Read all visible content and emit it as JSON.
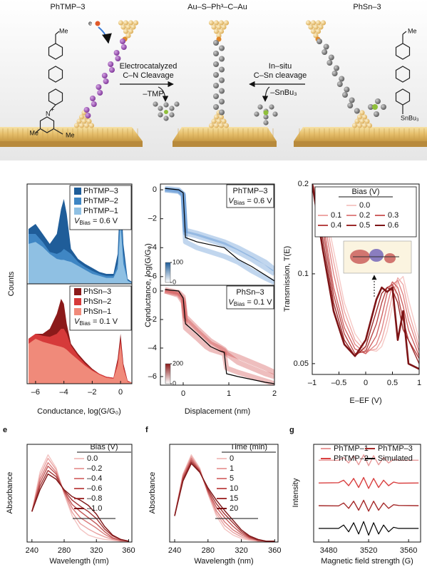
{
  "schematic": {
    "left_title": "PhTMP–3",
    "center_title": "Au–S–Ph³–C–Au",
    "right_title": "PhSn–3",
    "left_arrow": [
      "Electrocatalyzed",
      "C–N Cleavage",
      "–TMP"
    ],
    "right_arrow": [
      "In–situ",
      "C–Sn cleavage",
      "–SnBu₃"
    ],
    "left_molecule": [
      "Me",
      "N",
      "+",
      "Me",
      "Me"
    ],
    "right_molecule": [
      "Me",
      "SnBu₃"
    ],
    "electron": "e"
  },
  "chart_data": [
    {
      "type": "area",
      "ylabel": "Counts",
      "x": [
        -6.5,
        -6,
        -5.5,
        -5,
        -4.5,
        -4.2,
        -4,
        -3.8,
        -3.5,
        -3,
        -2.5,
        -2,
        -1.5,
        -1,
        -0.5,
        -0.2,
        0,
        0.2,
        0.5,
        0.8
      ],
      "xlim": [
        -6.6,
        0.8
      ],
      "ylim": [
        0,
        1
      ],
      "legend": "upper right",
      "annotation": {
        "symbol": "V",
        "subscript": "Bias",
        "text": " = 0.6 V"
      },
      "series": [
        {
          "name": "PhTMP–3",
          "color": "#1f5d99",
          "values": [
            0.55,
            0.6,
            0.5,
            0.4,
            0.5,
            0.75,
            0.85,
            0.7,
            0.35,
            0.25,
            0.2,
            0.16,
            0.12,
            0.1,
            0.1,
            0.3,
            0.97,
            0.4,
            0.05,
            0.02
          ]
        },
        {
          "name": "PhTMP–2",
          "color": "#3f86c4",
          "values": [
            0.5,
            0.5,
            0.42,
            0.32,
            0.3,
            0.32,
            0.35,
            0.33,
            0.3,
            0.22,
            0.17,
            0.13,
            0.1,
            0.08,
            0.08,
            0.2,
            0.8,
            0.3,
            0.04,
            0.01
          ]
        },
        {
          "name": "PhTMP–1",
          "color": "#8fc0e3",
          "values": [
            0.4,
            0.42,
            0.37,
            0.3,
            0.25,
            0.24,
            0.24,
            0.23,
            0.22,
            0.18,
            0.14,
            0.1,
            0.08,
            0.06,
            0.06,
            0.15,
            0.6,
            0.2,
            0.03,
            0.01
          ]
        }
      ]
    },
    {
      "type": "area",
      "xlabel": "Conductance, log(G/G₀)",
      "x": [
        -6.5,
        -6,
        -5.5,
        -5,
        -4.5,
        -4.2,
        -4,
        -3.8,
        -3.5,
        -3,
        -2.5,
        -2,
        -1.5,
        -1,
        -0.5,
        -0.2,
        0,
        0.2,
        0.5,
        0.8
      ],
      "xlim": [
        -6.6,
        0.8
      ],
      "ylim": [
        0,
        1
      ],
      "legend": "upper right",
      "xticks": [
        {
          "value": -6,
          "label": "–6"
        },
        {
          "value": -4,
          "label": "–4"
        },
        {
          "value": -2,
          "label": "–2"
        },
        0
      ],
      "annotation": {
        "symbol": "V",
        "subscript": "Bias",
        "text": " = 0.1 V"
      },
      "series": [
        {
          "name": "PhSn–3",
          "color": "#8b1a1a",
          "values": [
            0.45,
            0.5,
            0.5,
            0.55,
            0.7,
            0.85,
            0.8,
            0.6,
            0.4,
            0.3,
            0.22,
            0.15,
            0.1,
            0.07,
            0.06,
            0.25,
            0.5,
            0.2,
            0.03,
            0.01
          ]
        },
        {
          "name": "PhSn–2",
          "color": "#d63a3a",
          "values": [
            0.45,
            0.5,
            0.48,
            0.47,
            0.5,
            0.55,
            0.55,
            0.5,
            0.38,
            0.28,
            0.2,
            0.14,
            0.1,
            0.07,
            0.06,
            0.22,
            0.45,
            0.18,
            0.03,
            0.01
          ]
        },
        {
          "name": "PhSn–1",
          "color": "#f08a7a",
          "values": [
            0.4,
            0.45,
            0.42,
            0.4,
            0.38,
            0.37,
            0.36,
            0.34,
            0.3,
            0.24,
            0.18,
            0.13,
            0.09,
            0.06,
            0.05,
            0.18,
            0.4,
            0.15,
            0.02,
            0.01
          ]
        }
      ]
    },
    {
      "type": "line",
      "title": "PhTMP–3",
      "annotation": {
        "symbol": "V",
        "subscript": "Bias",
        "text": " = 0.6 V"
      },
      "ylabel": "Conductance, log(G/G₀)",
      "x": [
        -0.4,
        -0.1,
        0,
        0.05,
        0.3,
        0.6,
        0.9,
        1.2,
        1.5,
        1.8,
        2.0
      ],
      "xlim": [
        -0.5,
        2
      ],
      "ylim": [
        -6.6,
        0.4
      ],
      "yticks": [
        0,
        {
          "value": -2,
          "label": "–2"
        },
        {
          "value": -4,
          "label": "–4"
        },
        {
          "value": -6,
          "label": "–6"
        }
      ],
      "colorbar_ticks": [
        0,
        100
      ],
      "series": [
        {
          "color": "rgba(50,120,200,0.3)",
          "values": [
            0,
            -0.1,
            -0.3,
            -3.0,
            -3.2,
            -3.5,
            -3.8,
            -4.3,
            -4.8,
            -5.4,
            -5.8
          ]
        },
        {
          "color": "rgba(50,120,200,0.3)",
          "values": [
            0,
            -0.1,
            -0.4,
            -3.6,
            -4.0,
            -4.3,
            -4.6,
            -5.0,
            -5.6,
            -6.1,
            -6.4
          ]
        },
        {
          "color": "rgba(50,120,200,0.3)",
          "values": [
            0.1,
            0,
            -0.3,
            -2.8,
            -3.0,
            -3.3,
            -3.6,
            -4.0,
            -4.5,
            -5.0,
            -5.5
          ]
        },
        {
          "color": "#000000",
          "values": [
            0.1,
            0,
            -0.2,
            -3.3,
            -3.6,
            -3.8,
            -4.0,
            -4.8,
            -5.3,
            -5.9,
            -6.3
          ]
        }
      ]
    },
    {
      "type": "line",
      "title": "PhSn–3",
      "annotation": {
        "symbol": "V",
        "subscript": "Bias",
        "text": " = 0.1 V"
      },
      "xlabel": "Displacement (nm)",
      "x": [
        -0.4,
        -0.1,
        0,
        0.05,
        0.3,
        0.5,
        0.6,
        0.8,
        0.9,
        0.95,
        1.2,
        1.5,
        1.8,
        2.0
      ],
      "xlim": [
        -0.5,
        2
      ],
      "ylim": [
        -6.6,
        0.4
      ],
      "xticks": [
        0,
        1,
        2
      ],
      "yticks": [
        0,
        {
          "value": -2,
          "label": "–2"
        },
        {
          "value": -4,
          "label": "–4"
        },
        {
          "value": -6,
          "label": "–6"
        }
      ],
      "colorbar_ticks": [
        0,
        200
      ],
      "series": [
        {
          "color": "rgba(200,40,40,0.3)",
          "values": [
            0,
            -0.2,
            -0.6,
            -2.0,
            -2.8,
            -3.4,
            -3.7,
            -4.0,
            -4.2,
            -4.4,
            -5.0,
            -5.4,
            -5.8,
            -6.0
          ]
        },
        {
          "color": "rgba(200,40,40,0.3)",
          "values": [
            0,
            -0.3,
            -0.8,
            -2.6,
            -3.3,
            -3.9,
            -4.1,
            -4.3,
            -4.4,
            -5.4,
            -5.7,
            -6.0,
            -6.3,
            -6.5
          ]
        },
        {
          "color": "rgba(200,40,40,0.3)",
          "values": [
            0.1,
            -0.1,
            -0.4,
            -1.8,
            -2.6,
            -3.2,
            -3.5,
            -3.9,
            -4.1,
            -4.3,
            -4.6,
            -5.0,
            -5.4,
            -5.7
          ]
        },
        {
          "color": "#000000",
          "values": [
            0.1,
            0,
            -0.5,
            -2.3,
            -3.0,
            -3.6,
            -3.9,
            -4.2,
            -4.3,
            -5.8,
            -6.0,
            -6.2,
            -6.4,
            -6.5
          ]
        }
      ]
    },
    {
      "type": "line",
      "yscale": "log",
      "ylabel": "Transmission, T(E)",
      "xlabel": "E–EF (V)",
      "legend_title": "Bias (V)",
      "x": [
        -1,
        -0.8,
        -0.6,
        -0.4,
        -0.2,
        0,
        0.2,
        0.3,
        0.4,
        0.5,
        0.6,
        0.7,
        0.8,
        1
      ],
      "xlim": [
        -1,
        1
      ],
      "ylim": [
        0.046,
        0.2
      ],
      "yticks": [
        0.05,
        0.1,
        0.2
      ],
      "xticks": [
        {
          "value": -1,
          "label": "–1"
        },
        {
          "value": -0.5,
          "label": "–0.5"
        },
        0,
        0.5,
        1
      ],
      "series": [
        {
          "name": "0.0",
          "color": "#f6c9c6",
          "values": [
            0.2,
            0.18,
            0.12,
            0.08,
            0.063,
            0.056,
            0.055,
            0.057,
            0.064,
            0.078,
            0.094,
            0.098,
            0.082,
            0.06
          ]
        },
        {
          "name": "0.1",
          "color": "#eea8a6",
          "values": [
            0.2,
            0.17,
            0.11,
            0.075,
            0.06,
            0.055,
            0.056,
            0.06,
            0.07,
            0.085,
            0.097,
            0.092,
            0.075,
            0.057
          ]
        },
        {
          "name": "0.2",
          "color": "#e08585",
          "values": [
            0.2,
            0.16,
            0.1,
            0.07,
            0.058,
            0.054,
            0.058,
            0.065,
            0.078,
            0.092,
            0.095,
            0.085,
            0.07,
            0.055
          ]
        },
        {
          "name": "0.3",
          "color": "#cf6363",
          "values": [
            0.2,
            0.15,
            0.09,
            0.066,
            0.056,
            0.054,
            0.062,
            0.072,
            0.086,
            0.094,
            0.09,
            0.078,
            0.065,
            0.053
          ]
        },
        {
          "name": "0.4",
          "color": "#b84545",
          "values": [
            0.2,
            0.14,
            0.085,
            0.063,
            0.054,
            0.055,
            0.068,
            0.08,
            0.09,
            0.092,
            0.085,
            0.07,
            0.06,
            0.052
          ]
        },
        {
          "name": "0.5",
          "color": "#9c2a2a",
          "values": [
            0.2,
            0.13,
            0.08,
            0.06,
            0.053,
            0.057,
            0.075,
            0.086,
            0.09,
            0.088,
            0.08,
            0.065,
            0.06,
            0.05
          ]
        },
        {
          "name": "0.6",
          "color": "#7d1416",
          "values": [
            0.2,
            0.12,
            0.075,
            0.058,
            0.053,
            0.06,
            0.082,
            0.09,
            0.087,
            0.09,
            0.06,
            0.075,
            0.05,
            0.048
          ]
        }
      ]
    },
    {
      "type": "line",
      "panel_label": "e",
      "ylabel": "Absorbance",
      "xlabel": "Wavelength (nm)",
      "legend_title": "Bias (V)",
      "x": [
        240,
        250,
        260,
        270,
        280,
        290,
        300,
        310,
        320,
        330,
        340,
        350,
        360
      ],
      "xlim": [
        234,
        364
      ],
      "ylim": [
        0,
        1.12
      ],
      "xticks": [
        240,
        280,
        320,
        360
      ],
      "series": [
        {
          "name": "0.0",
          "color": "#f3c4c2",
          "values": [
            0.35,
            0.8,
            1.0,
            0.85,
            0.55,
            0.3,
            0.15,
            0.08,
            0.05,
            0.03,
            0.02,
            0.01,
            0.01
          ]
        },
        {
          "name": "–0.2",
          "color": "#e9a3a2",
          "values": [
            0.35,
            0.76,
            0.96,
            0.83,
            0.56,
            0.34,
            0.21,
            0.15,
            0.1,
            0.06,
            0.03,
            0.01,
            0.01
          ]
        },
        {
          "name": "–0.4",
          "color": "#d97c7c",
          "values": [
            0.35,
            0.72,
            0.91,
            0.8,
            0.57,
            0.39,
            0.28,
            0.22,
            0.16,
            0.09,
            0.04,
            0.02,
            0.01
          ]
        },
        {
          "name": "–0.6",
          "color": "#c25656",
          "values": [
            0.35,
            0.68,
            0.87,
            0.78,
            0.58,
            0.43,
            0.35,
            0.28,
            0.21,
            0.12,
            0.05,
            0.02,
            0.01
          ]
        },
        {
          "name": "–0.8",
          "color": "#a23434",
          "values": [
            0.35,
            0.64,
            0.82,
            0.75,
            0.59,
            0.48,
            0.41,
            0.35,
            0.27,
            0.15,
            0.07,
            0.03,
            0.01
          ]
        },
        {
          "name": "–1.0",
          "color": "#7d1416",
          "values": [
            0.35,
            0.6,
            0.78,
            0.72,
            0.6,
            0.52,
            0.48,
            0.42,
            0.32,
            0.18,
            0.08,
            0.03,
            0.01
          ]
        }
      ]
    },
    {
      "type": "line",
      "panel_label": "f",
      "ylabel": "Absorbance",
      "xlabel": "Wavelength (nm)",
      "legend_title": "Time (min)",
      "x": [
        240,
        250,
        260,
        270,
        280,
        290,
        300,
        310,
        320,
        330,
        340,
        350,
        360
      ],
      "xlim": [
        234,
        364
      ],
      "ylim": [
        0,
        1.12
      ],
      "xticks": [
        240,
        280,
        320,
        360
      ],
      "series": [
        {
          "name": "0",
          "color": "#f3c4c2",
          "values": [
            0.3,
            0.78,
            1.0,
            0.85,
            0.55,
            0.3,
            0.15,
            0.08,
            0.04,
            0.02,
            0.01,
            0.01,
            0.01
          ]
        },
        {
          "name": "1",
          "color": "#e9a3a2",
          "values": [
            0.3,
            0.77,
            0.98,
            0.84,
            0.56,
            0.33,
            0.19,
            0.11,
            0.06,
            0.03,
            0.01,
            0.01,
            0.01
          ]
        },
        {
          "name": "5",
          "color": "#d97c7c",
          "values": [
            0.3,
            0.76,
            0.96,
            0.83,
            0.57,
            0.36,
            0.23,
            0.14,
            0.08,
            0.04,
            0.02,
            0.01,
            0.01
          ]
        },
        {
          "name": "10",
          "color": "#c25656",
          "values": [
            0.3,
            0.74,
            0.94,
            0.82,
            0.58,
            0.4,
            0.28,
            0.18,
            0.1,
            0.05,
            0.02,
            0.01,
            0.01
          ]
        },
        {
          "name": "15",
          "color": "#a23434",
          "values": [
            0.3,
            0.72,
            0.92,
            0.81,
            0.6,
            0.44,
            0.32,
            0.22,
            0.12,
            0.06,
            0.02,
            0.01,
            0.01
          ]
        },
        {
          "name": "20",
          "color": "#7d1416",
          "values": [
            0.3,
            0.7,
            0.9,
            0.8,
            0.62,
            0.48,
            0.36,
            0.25,
            0.14,
            0.07,
            0.03,
            0.01,
            0.01
          ]
        }
      ]
    },
    {
      "type": "line",
      "panel_label": "g",
      "ylabel": "Intensity",
      "xlabel": "Magnetic field strength (G)",
      "x": [
        3470,
        3490,
        3495,
        3500,
        3505,
        3510,
        3515,
        3520,
        3525,
        3530,
        3535,
        3540,
        3545,
        3550,
        3570
      ],
      "xlim": [
        3465,
        3572
      ],
      "ylim": [
        -0.3,
        4.0
      ],
      "xticks": [
        3480,
        3520,
        3560
      ],
      "series": [
        {
          "name": "PhTMP–1",
          "color": "#e89a9a",
          "values": [
            3.3,
            3.3,
            3.42,
            3.18,
            3.5,
            3.1,
            3.54,
            3.06,
            3.5,
            3.1,
            3.42,
            3.18,
            3.34,
            3.3,
            3.3
          ]
        },
        {
          "name": "PhTMP–2",
          "color": "#d94040",
          "values": [
            2.3,
            2.31,
            2.42,
            2.18,
            2.5,
            2.1,
            2.54,
            2.06,
            2.5,
            2.1,
            2.42,
            2.18,
            2.34,
            2.29,
            2.3
          ]
        },
        {
          "name": "PhTMP–3",
          "color": "#a52a2a",
          "values": [
            1.3,
            1.29,
            1.42,
            1.18,
            1.5,
            1.1,
            1.54,
            1.06,
            1.5,
            1.1,
            1.42,
            1.18,
            1.34,
            1.31,
            1.3
          ]
        },
        {
          "name": "Simulated",
          "color": "#000000",
          "values": [
            0.3,
            0.3,
            0.45,
            0.15,
            0.55,
            0.05,
            0.6,
            0,
            0.55,
            0.05,
            0.45,
            0.15,
            0.35,
            0.3,
            0.3
          ]
        }
      ]
    }
  ]
}
